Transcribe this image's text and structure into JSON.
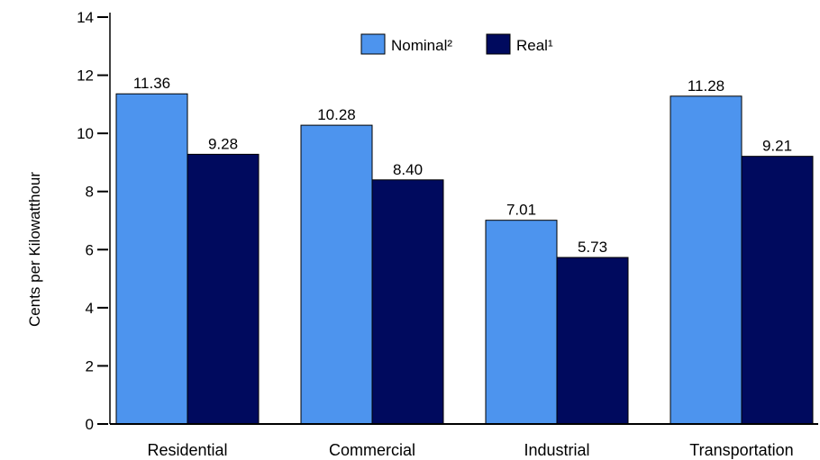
{
  "chart_data": {
    "type": "bar",
    "categories": [
      "Residential",
      "Commercial",
      "Industrial",
      "Transportation"
    ],
    "series": [
      {
        "name": "Nominal²",
        "values": [
          11.36,
          10.28,
          7.01,
          11.28
        ],
        "labels": [
          "11.36",
          "10.28",
          "7.01",
          "11.28"
        ]
      },
      {
        "name": "Real¹",
        "values": [
          9.28,
          8.4,
          5.73,
          9.21
        ],
        "labels": [
          "9.28",
          "8.40",
          "5.73",
          "9.21"
        ]
      }
    ],
    "title": "",
    "xlabel": "",
    "ylabel": "Cents per Kilowatthour",
    "ylim": [
      0,
      14
    ],
    "yticks": [
      0,
      2,
      4,
      6,
      8,
      10,
      12,
      14
    ],
    "grid": false,
    "legend_position": "top-center"
  },
  "colors": {
    "nominal": "#4d94ee",
    "real": "#000a5e",
    "axis": "#000000"
  }
}
